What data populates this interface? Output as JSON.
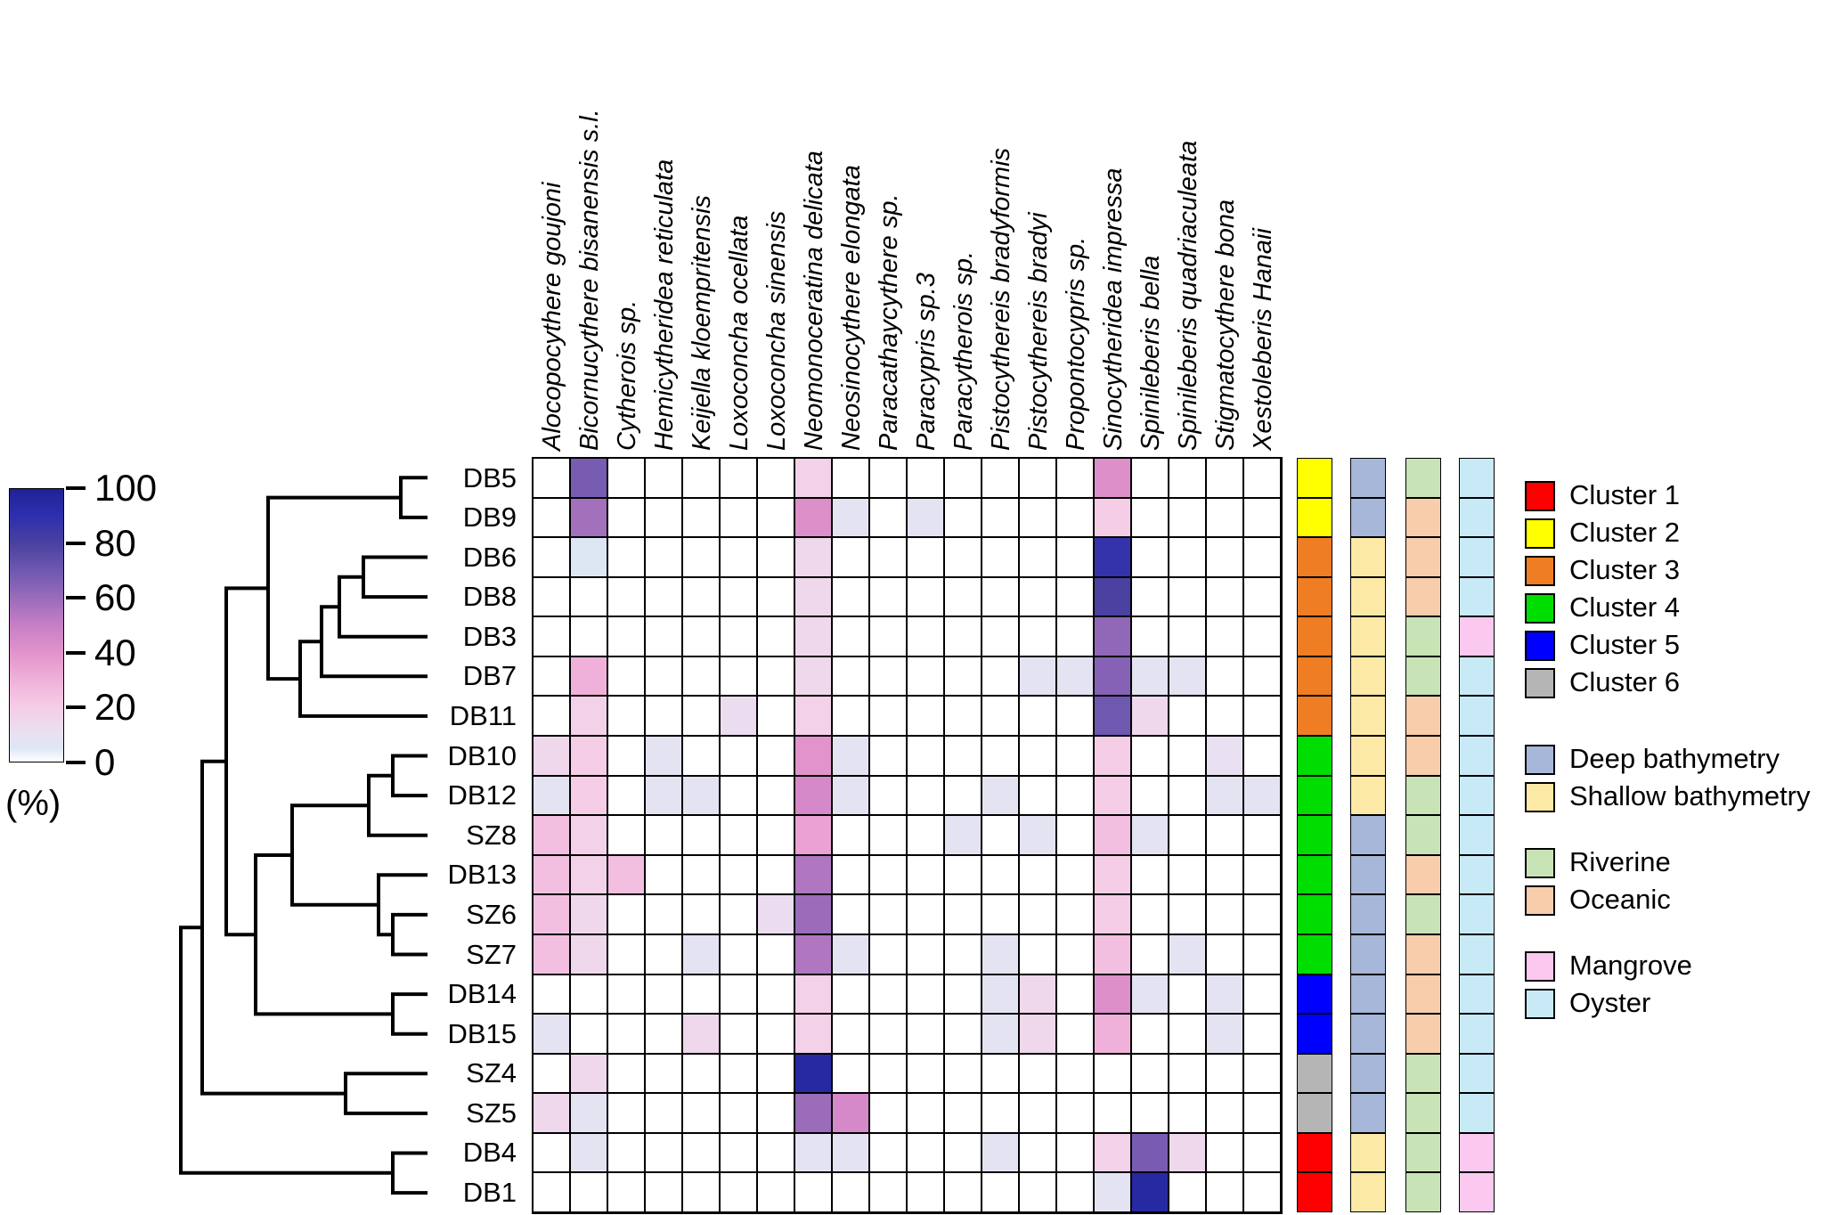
{
  "chart_data": {
    "type": "heatmap",
    "unit": "%",
    "unit_label": "(%)",
    "legend_position": "right",
    "colorbar_ticks": [
      100,
      80,
      60,
      40,
      20,
      0
    ],
    "colormap_stops": [
      [
        0,
        "#ffffff"
      ],
      [
        5,
        "#dde7f4"
      ],
      [
        10,
        "#e9e1f1"
      ],
      [
        20,
        "#f5cde6"
      ],
      [
        30,
        "#efb1da"
      ],
      [
        40,
        "#e293cb"
      ],
      [
        50,
        "#c77fc6"
      ],
      [
        60,
        "#9a6cba"
      ],
      [
        70,
        "#6f58b0"
      ],
      [
        80,
        "#4a41a0"
      ],
      [
        90,
        "#2e2fae"
      ],
      [
        100,
        "#1f2296"
      ]
    ],
    "columns": [
      "Alocopocythere goujoni",
      "Bicornucythere bisanensis s.l.",
      "Cytherois sp.",
      "Hemicytheridea reticulata",
      "Keijella kloempritensis",
      "Loxoconcha ocellata",
      "Loxoconcha sinensis",
      "Neomonoceratina delicata",
      "Neosinocythere elongata",
      "Paracathaycythere sp.",
      "Paracypris sp.3",
      "Paracytherois sp.",
      "Pistocythereis bradyformis",
      "Pistocythereis bradyi",
      "Propontocypris sp.",
      "Sinocytheridea impressa",
      "Spinileberis bella",
      "Spinileberis quadriaculeata",
      "Stigmatocythere bona",
      "Xestoleberis Hanaii"
    ],
    "rows": [
      "DB5",
      "DB9",
      "DB6",
      "DB8",
      "DB3",
      "DB7",
      "DB11",
      "DB10",
      "DB12",
      "SZ8",
      "DB13",
      "SZ6",
      "SZ7",
      "DB14",
      "DB15",
      "SZ4",
      "SZ5",
      "DB4",
      "DB1"
    ],
    "values": [
      [
        0,
        68,
        0,
        0,
        0,
        0,
        0,
        18,
        0,
        0,
        0,
        0,
        0,
        0,
        0,
        42,
        0,
        0,
        0,
        0
      ],
      [
        0,
        58,
        0,
        0,
        0,
        0,
        0,
        42,
        8,
        0,
        8,
        0,
        0,
        0,
        0,
        20,
        0,
        0,
        0,
        0
      ],
      [
        0,
        5,
        0,
        0,
        0,
        0,
        0,
        15,
        0,
        0,
        0,
        0,
        0,
        0,
        0,
        88,
        0,
        0,
        0,
        0
      ],
      [
        0,
        0,
        0,
        0,
        0,
        0,
        0,
        15,
        0,
        0,
        0,
        0,
        0,
        0,
        0,
        80,
        0,
        0,
        0,
        0
      ],
      [
        0,
        0,
        0,
        0,
        0,
        0,
        0,
        15,
        0,
        0,
        0,
        0,
        0,
        0,
        0,
        62,
        0,
        0,
        0,
        0
      ],
      [
        0,
        30,
        0,
        0,
        0,
        0,
        0,
        15,
        0,
        0,
        0,
        0,
        0,
        8,
        8,
        65,
        8,
        8,
        0,
        0
      ],
      [
        0,
        18,
        0,
        0,
        0,
        12,
        0,
        18,
        0,
        0,
        0,
        0,
        0,
        0,
        0,
        70,
        15,
        0,
        0,
        0
      ],
      [
        15,
        20,
        0,
        8,
        0,
        0,
        0,
        40,
        8,
        0,
        0,
        0,
        0,
        0,
        0,
        20,
        0,
        0,
        10,
        0
      ],
      [
        8,
        20,
        0,
        8,
        8,
        0,
        0,
        45,
        8,
        0,
        0,
        0,
        8,
        0,
        0,
        20,
        0,
        0,
        8,
        8
      ],
      [
        25,
        18,
        0,
        0,
        0,
        0,
        0,
        35,
        0,
        0,
        0,
        8,
        0,
        8,
        0,
        25,
        8,
        0,
        0,
        0
      ],
      [
        25,
        18,
        25,
        0,
        0,
        0,
        0,
        55,
        0,
        0,
        0,
        0,
        0,
        0,
        0,
        20,
        0,
        0,
        0,
        0
      ],
      [
        25,
        15,
        0,
        0,
        0,
        0,
        12,
        60,
        0,
        0,
        0,
        0,
        0,
        0,
        0,
        20,
        0,
        0,
        0,
        0
      ],
      [
        25,
        15,
        0,
        0,
        8,
        0,
        0,
        55,
        8,
        0,
        0,
        0,
        8,
        0,
        0,
        25,
        0,
        8,
        0,
        0
      ],
      [
        0,
        0,
        0,
        0,
        0,
        0,
        0,
        18,
        0,
        0,
        0,
        0,
        8,
        15,
        0,
        42,
        8,
        0,
        8,
        0
      ],
      [
        8,
        0,
        0,
        0,
        15,
        0,
        0,
        18,
        0,
        0,
        0,
        0,
        8,
        15,
        0,
        30,
        0,
        0,
        8,
        0
      ],
      [
        0,
        15,
        0,
        0,
        0,
        0,
        0,
        95,
        0,
        0,
        0,
        0,
        0,
        0,
        0,
        0,
        0,
        0,
        0,
        0
      ],
      [
        15,
        8,
        0,
        0,
        0,
        0,
        0,
        60,
        45,
        0,
        0,
        0,
        0,
        0,
        0,
        0,
        0,
        0,
        0,
        0
      ],
      [
        0,
        8,
        0,
        0,
        0,
        0,
        0,
        8,
        8,
        0,
        0,
        0,
        8,
        0,
        0,
        18,
        68,
        15,
        0,
        0
      ],
      [
        0,
        0,
        0,
        0,
        0,
        0,
        0,
        0,
        0,
        0,
        0,
        0,
        0,
        0,
        0,
        8,
        95,
        0,
        0,
        0
      ]
    ],
    "palette": {
      "cluster1": "#ff0000",
      "cluster2": "#ffff00",
      "cluster3": "#ef7d23",
      "cluster4": "#00dd00",
      "cluster5": "#0000ff",
      "cluster6": "#b5b5b5",
      "deep": "#a7b7d9",
      "shallow": "#fde9a6",
      "riverine": "#c8e3b6",
      "oceanic": "#f8cdab",
      "mangrove": "#fbc8ef",
      "oyster": "#c8eaf7"
    },
    "row_annotations": {
      "cluster": [
        "cluster2",
        "cluster2",
        "cluster3",
        "cluster3",
        "cluster3",
        "cluster3",
        "cluster3",
        "cluster4",
        "cluster4",
        "cluster4",
        "cluster4",
        "cluster4",
        "cluster4",
        "cluster5",
        "cluster5",
        "cluster6",
        "cluster6",
        "cluster1",
        "cluster1"
      ],
      "bathymetry": [
        "deep",
        "deep",
        "shallow",
        "shallow",
        "shallow",
        "shallow",
        "shallow",
        "shallow",
        "shallow",
        "deep",
        "deep",
        "deep",
        "deep",
        "deep",
        "deep",
        "deep",
        "deep",
        "shallow",
        "shallow"
      ],
      "river_ocean": [
        "riverine",
        "oceanic",
        "oceanic",
        "oceanic",
        "riverine",
        "riverine",
        "oceanic",
        "oceanic",
        "riverine",
        "riverine",
        "oceanic",
        "riverine",
        "oceanic",
        "oceanic",
        "oceanic",
        "riverine",
        "riverine",
        "riverine",
        "riverine"
      ],
      "habitat": [
        "oyster",
        "oyster",
        "oyster",
        "oyster",
        "mangrove",
        "oyster",
        "oyster",
        "oyster",
        "oyster",
        "oyster",
        "oyster",
        "oyster",
        "oyster",
        "oyster",
        "oyster",
        "oyster",
        "oyster",
        "mangrove",
        "mangrove"
      ]
    }
  },
  "legend": {
    "sections": [
      {
        "name": "clusters",
        "items": [
          {
            "label": "Cluster 1",
            "key": "cluster1"
          },
          {
            "label": "Cluster 2",
            "key": "cluster2"
          },
          {
            "label": "Cluster 3",
            "key": "cluster3"
          },
          {
            "label": "Cluster 4",
            "key": "cluster4"
          },
          {
            "label": "Cluster 5",
            "key": "cluster5"
          },
          {
            "label": "Cluster 6",
            "key": "cluster6"
          }
        ]
      },
      {
        "name": "bathymetry",
        "items": [
          {
            "label": "Deep bathymetry",
            "key": "deep"
          },
          {
            "label": "Shallow bathymetry",
            "key": "shallow"
          }
        ]
      },
      {
        "name": "river-ocean",
        "items": [
          {
            "label": "Riverine",
            "key": "riverine"
          },
          {
            "label": "Oceanic",
            "key": "oceanic"
          }
        ]
      },
      {
        "name": "habitat",
        "items": [
          {
            "label": "Mangrove",
            "key": "mangrove"
          },
          {
            "label": "Oyster",
            "key": "oyster"
          }
        ]
      }
    ]
  }
}
